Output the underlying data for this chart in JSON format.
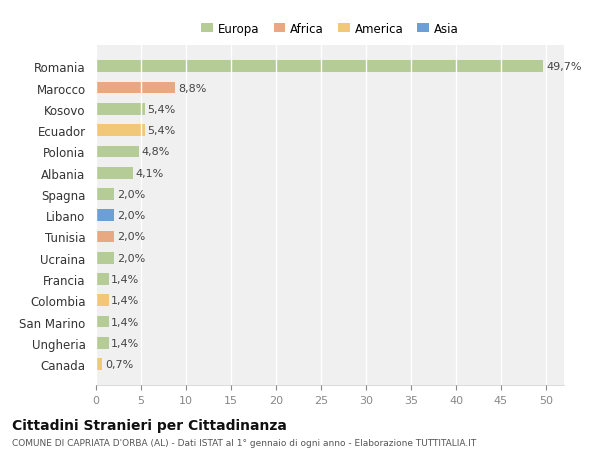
{
  "countries": [
    "Romania",
    "Marocco",
    "Kosovo",
    "Ecuador",
    "Polonia",
    "Albania",
    "Spagna",
    "Libano",
    "Tunisia",
    "Ucraina",
    "Francia",
    "Colombia",
    "San Marino",
    "Ungheria",
    "Canada"
  ],
  "values": [
    49.7,
    8.8,
    5.4,
    5.4,
    4.8,
    4.1,
    2.0,
    2.0,
    2.0,
    2.0,
    1.4,
    1.4,
    1.4,
    1.4,
    0.7
  ],
  "labels": [
    "49,7%",
    "8,8%",
    "5,4%",
    "5,4%",
    "4,8%",
    "4,1%",
    "2,0%",
    "2,0%",
    "2,0%",
    "2,0%",
    "1,4%",
    "1,4%",
    "1,4%",
    "1,4%",
    "0,7%"
  ],
  "colors": [
    "#b5cc96",
    "#e8a882",
    "#b5cc96",
    "#f0c878",
    "#b5cc96",
    "#b5cc96",
    "#b5cc96",
    "#6e9fd4",
    "#e8a882",
    "#b5cc96",
    "#b5cc96",
    "#f0c878",
    "#b5cc96",
    "#b5cc96",
    "#f0c878"
  ],
  "legend": [
    {
      "label": "Europa",
      "color": "#b5cc96"
    },
    {
      "label": "Africa",
      "color": "#e8a882"
    },
    {
      "label": "America",
      "color": "#f0c878"
    },
    {
      "label": "Asia",
      "color": "#6e9fd4"
    }
  ],
  "title": "Cittadini Stranieri per Cittadinanza",
  "subtitle": "COMUNE DI CAPRIATA D'ORBA (AL) - Dati ISTAT al 1° gennaio di ogni anno - Elaborazione TUTTITALIA.IT",
  "xlim": [
    0,
    52
  ],
  "xticks": [
    0,
    5,
    10,
    15,
    20,
    25,
    30,
    35,
    40,
    45,
    50
  ],
  "background_color": "#ffffff",
  "plot_bg_color": "#f0f0f0",
  "grid_color": "#ffffff",
  "bar_height": 0.55
}
